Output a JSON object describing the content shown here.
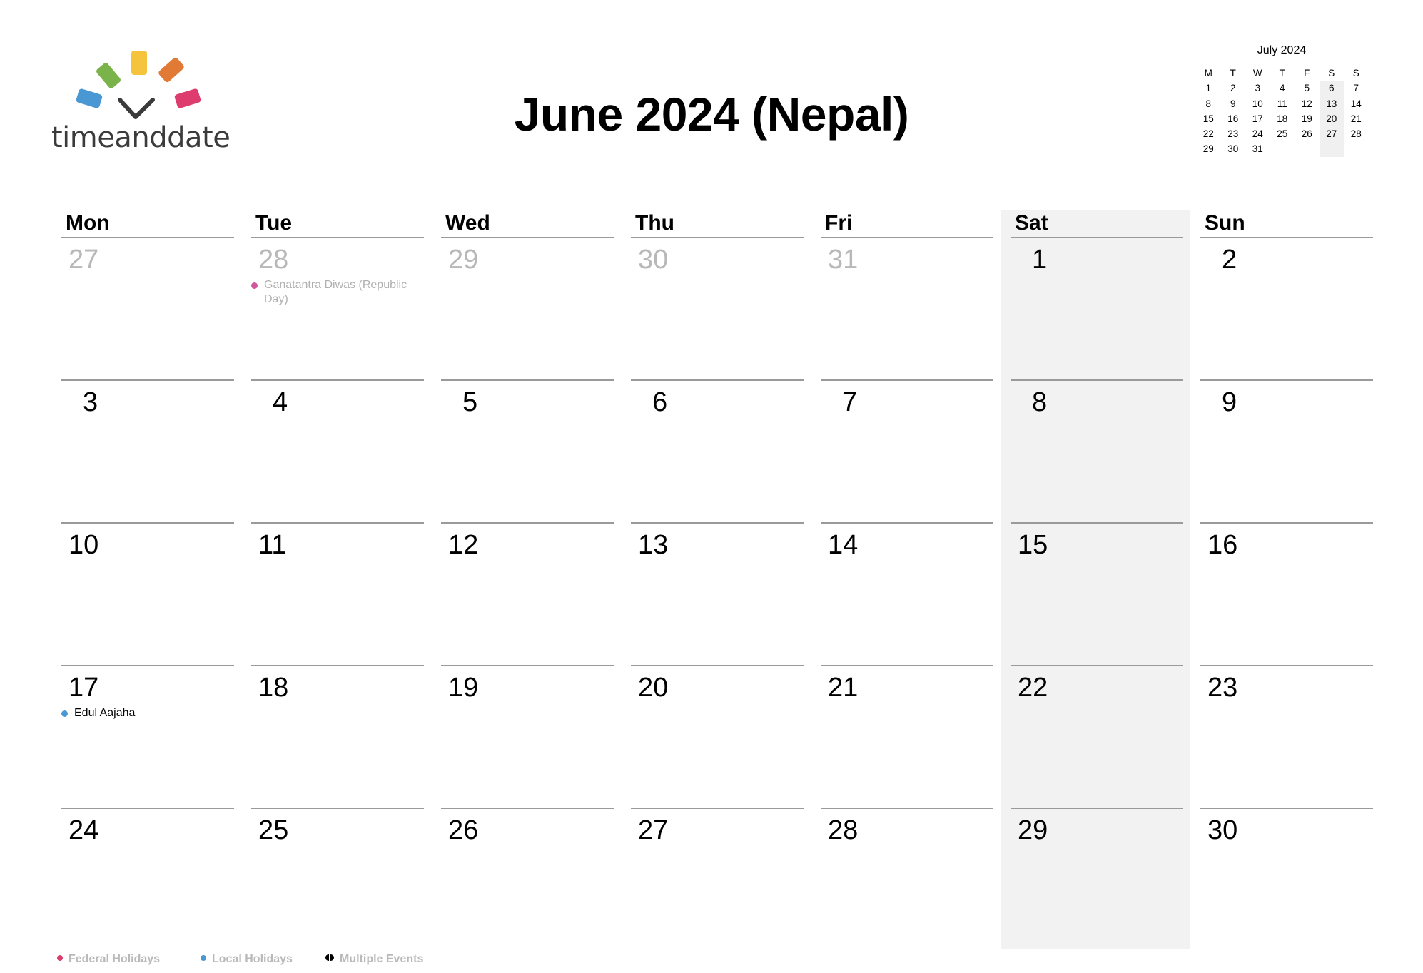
{
  "logo": {
    "text": "timeanddate",
    "colors": [
      "#4a98d3",
      "#7ab34a",
      "#f5c43c",
      "#e07a35",
      "#de3b6e"
    ]
  },
  "title": "June 2024 (Nepal)",
  "mini_calendar": {
    "title": "July 2024",
    "headers": [
      "M",
      "T",
      "W",
      "T",
      "F",
      "S",
      "S"
    ],
    "weeks": [
      [
        "1",
        "2",
        "3",
        "4",
        "5",
        "6",
        "7"
      ],
      [
        "8",
        "9",
        "10",
        "11",
        "12",
        "13",
        "14"
      ],
      [
        "15",
        "16",
        "17",
        "18",
        "19",
        "20",
        "21"
      ],
      [
        "22",
        "23",
        "24",
        "25",
        "26",
        "27",
        "28"
      ],
      [
        "29",
        "30",
        "31",
        "",
        "",
        "",
        ""
      ]
    ]
  },
  "calendar": {
    "weekday_headers": [
      "Mon",
      "Tue",
      "Wed",
      "Thu",
      "Fri",
      "Sat",
      "Sun"
    ],
    "weeks": [
      [
        {
          "day": "27",
          "muted": true
        },
        {
          "day": "28",
          "muted": true,
          "event": {
            "text": "Ganatantra Diwas (Republic Day)",
            "color": "#d0579a",
            "muted": true
          }
        },
        {
          "day": "29",
          "muted": true
        },
        {
          "day": "30",
          "muted": true
        },
        {
          "day": "31",
          "muted": true
        },
        {
          "day": "1"
        },
        {
          "day": "2"
        }
      ],
      [
        {
          "day": "3"
        },
        {
          "day": "4"
        },
        {
          "day": "5"
        },
        {
          "day": "6"
        },
        {
          "day": "7"
        },
        {
          "day": "8"
        },
        {
          "day": "9"
        }
      ],
      [
        {
          "day": "10"
        },
        {
          "day": "11"
        },
        {
          "day": "12"
        },
        {
          "day": "13"
        },
        {
          "day": "14"
        },
        {
          "day": "15"
        },
        {
          "day": "16"
        }
      ],
      [
        {
          "day": "17",
          "event": {
            "text": "Edul Aajaha",
            "color": "#4a98d3",
            "muted": false
          }
        },
        {
          "day": "18"
        },
        {
          "day": "19"
        },
        {
          "day": "20"
        },
        {
          "day": "21"
        },
        {
          "day": "22"
        },
        {
          "day": "23"
        }
      ],
      [
        {
          "day": "24"
        },
        {
          "day": "25"
        },
        {
          "day": "26"
        },
        {
          "day": "27"
        },
        {
          "day": "28"
        },
        {
          "day": "29"
        },
        {
          "day": "30"
        }
      ]
    ]
  },
  "legend": {
    "federal": {
      "label": "Federal Holidays",
      "color": "#de3b6e"
    },
    "local": {
      "label": "Local Holidays",
      "color": "#4a98d3"
    },
    "multiple": {
      "label": "Multiple Events"
    }
  }
}
